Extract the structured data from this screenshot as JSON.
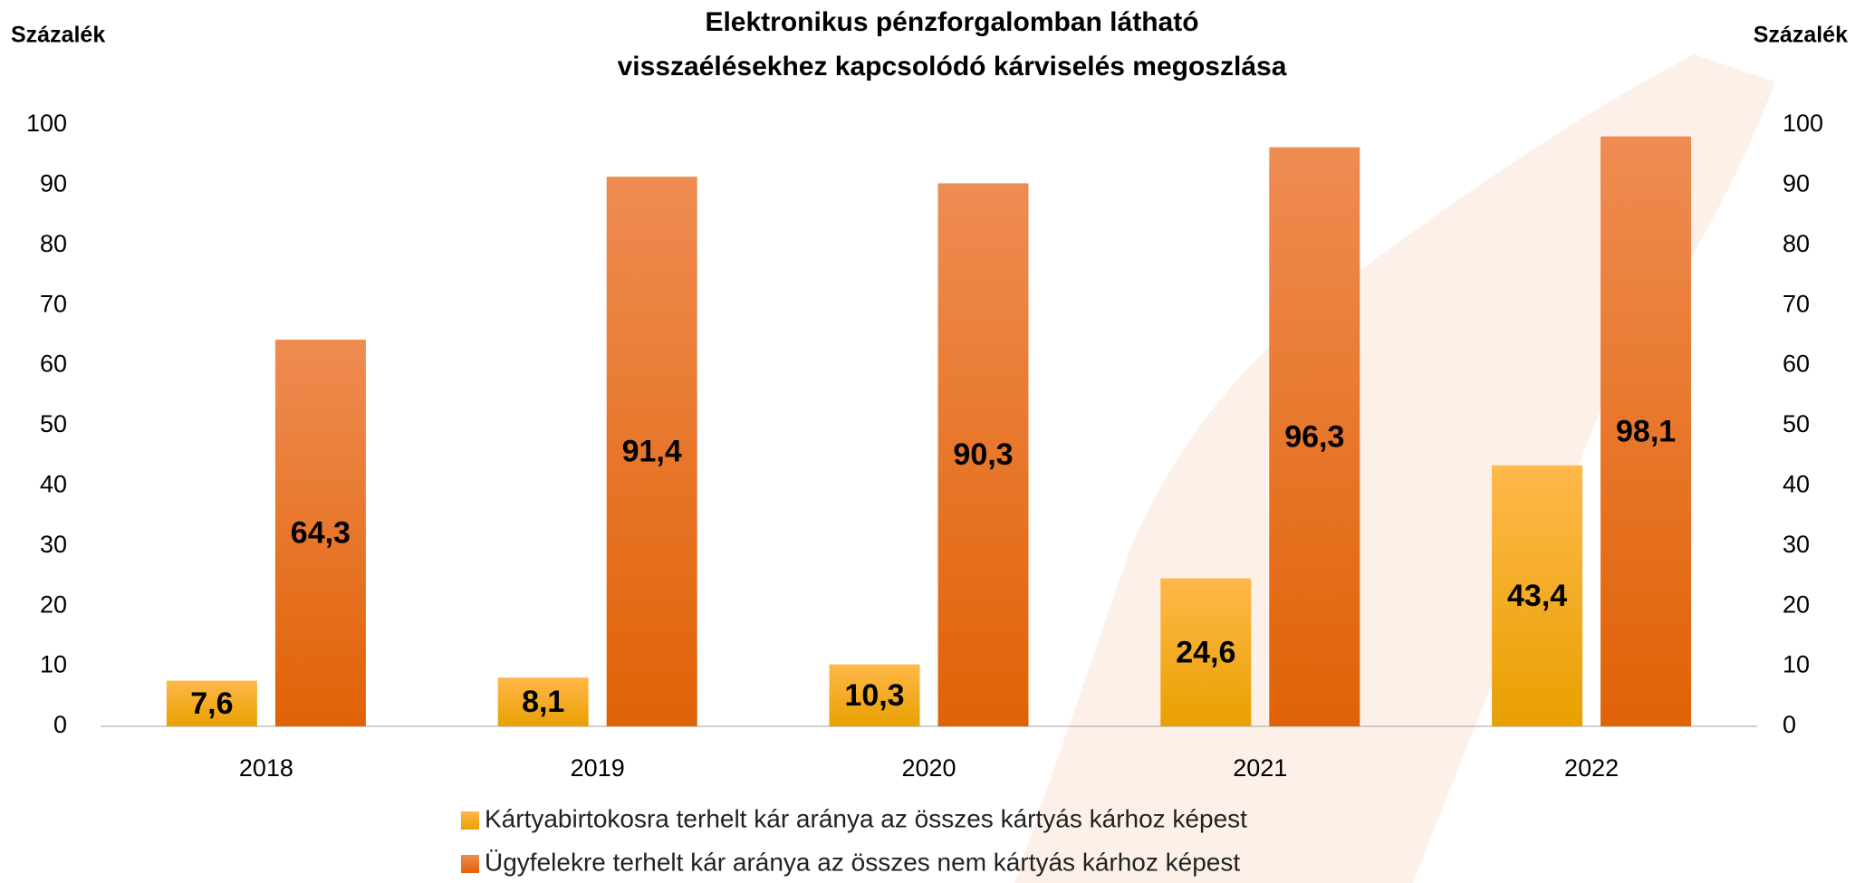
{
  "chart_data": {
    "type": "bar",
    "title": [
      "Elektronikus pénzforgalomban látható",
      "visszaélésekhez kapcsolódó kárviselés megoszlása"
    ],
    "ylabel": "Százalék",
    "y2label": "Százalék",
    "categories": [
      "2018",
      "2019",
      "2020",
      "2021",
      "2022"
    ],
    "series": [
      {
        "name": "Kártyabirtokosra terhelt kár aránya az összes kártyás kárhoz képest",
        "color": "#f5a81c",
        "values": [
          7.6,
          8.1,
          10.3,
          24.6,
          43.4
        ],
        "value_labels": [
          "7,6",
          "8,1",
          "10,3",
          "24,6",
          "43,4"
        ]
      },
      {
        "name": "Ügyfelekre terhelt kár aránya az összes nem kártyás kárhoz képest",
        "color": "#e8680f",
        "values": [
          64.3,
          91.4,
          90.3,
          96.3,
          98.1
        ],
        "value_labels": [
          "64,3",
          "91,4",
          "90,3",
          "96,3",
          "98,1"
        ]
      }
    ],
    "ylim": [
      0,
      100
    ],
    "yticks": [
      0,
      10,
      20,
      30,
      40,
      50,
      60,
      70,
      80,
      90,
      100
    ],
    "y2lim": [
      0,
      100
    ],
    "y2ticks": [
      0,
      10,
      20,
      30,
      40,
      50,
      60,
      70,
      80,
      90,
      100
    ],
    "grid": false
  }
}
